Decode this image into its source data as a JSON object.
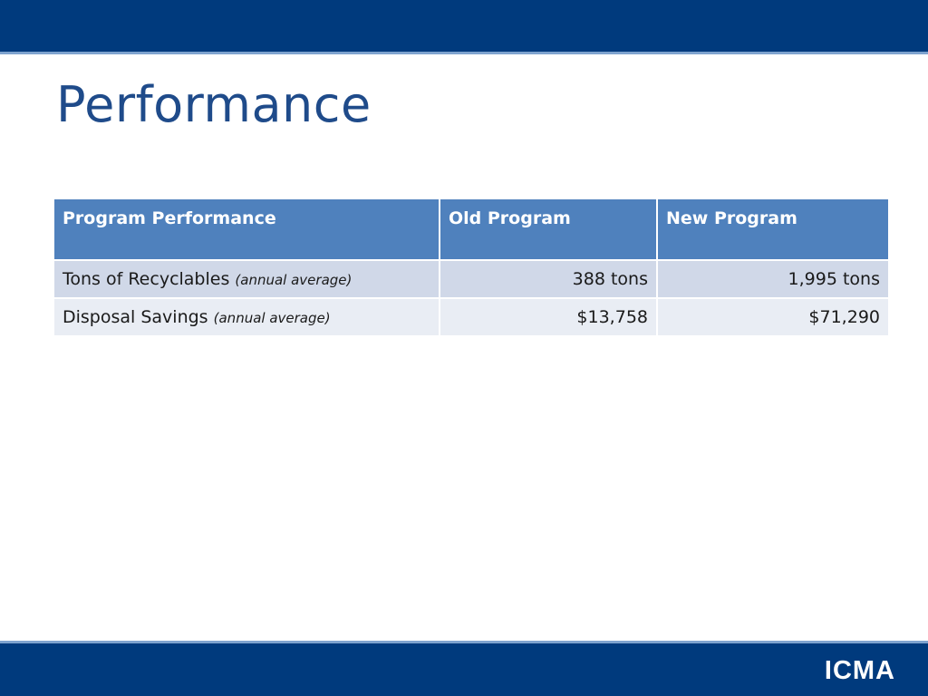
{
  "title": "Performance",
  "table": {
    "headers": [
      "Program Performance",
      "Old Program",
      "New Program"
    ],
    "rows": [
      {
        "label": "Tons of Recyclables",
        "note": "(annual average)",
        "old": "388 tons",
        "new": "1,995 tons"
      },
      {
        "label": "Disposal Savings",
        "note": "(annual average)",
        "old": "$13,758",
        "new": "$71,290"
      }
    ]
  },
  "logo": "ICMA",
  "colors": {
    "header_bar": "#003a7d",
    "title": "#1f4b8a",
    "table_header": "#4f81bd"
  }
}
